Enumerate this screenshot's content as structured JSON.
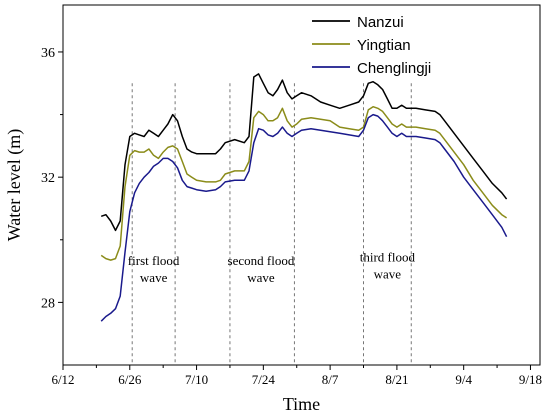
{
  "chart_data": {
    "type": "line",
    "xlabel": "Time",
    "ylabel": "Water level (m)",
    "xlim": [
      0,
      100
    ],
    "ylim": [
      26.0,
      37.5
    ],
    "x_ticks": [
      {
        "x": 0,
        "label": "6/12"
      },
      {
        "x": 14,
        "label": "6/26"
      },
      {
        "x": 28,
        "label": "7/10"
      },
      {
        "x": 42,
        "label": "7/24"
      },
      {
        "x": 56,
        "label": "8/7"
      },
      {
        "x": 70,
        "label": "8/21"
      },
      {
        "x": 84,
        "label": "9/4"
      },
      {
        "x": 98,
        "label": "9/18"
      }
    ],
    "y_ticks": [
      28,
      32,
      36
    ],
    "legend_position": "top-right",
    "series": [
      {
        "name": "Nanzui",
        "color": "#000000",
        "points": [
          [
            8,
            30.75
          ],
          [
            9,
            30.8
          ],
          [
            10,
            30.6
          ],
          [
            11,
            30.3
          ],
          [
            12,
            30.6
          ],
          [
            13,
            32.4
          ],
          [
            14,
            33.3
          ],
          [
            15,
            33.4
          ],
          [
            16,
            33.35
          ],
          [
            17,
            33.3
          ],
          [
            18,
            33.5
          ],
          [
            19,
            33.4
          ],
          [
            20,
            33.3
          ],
          [
            21,
            33.5
          ],
          [
            22,
            33.7
          ],
          [
            23,
            34.0
          ],
          [
            24,
            33.8
          ],
          [
            25,
            33.3
          ],
          [
            26,
            32.9
          ],
          [
            27,
            32.8
          ],
          [
            28,
            32.75
          ],
          [
            30,
            32.75
          ],
          [
            32,
            32.75
          ],
          [
            33,
            32.9
          ],
          [
            34,
            33.1
          ],
          [
            36,
            33.2
          ],
          [
            38,
            33.1
          ],
          [
            39,
            33.3
          ],
          [
            40,
            35.2
          ],
          [
            41,
            35.3
          ],
          [
            42,
            35.0
          ],
          [
            43,
            34.7
          ],
          [
            44,
            34.6
          ],
          [
            45,
            34.8
          ],
          [
            46,
            35.1
          ],
          [
            47,
            34.7
          ],
          [
            48,
            34.5
          ],
          [
            49,
            34.6
          ],
          [
            50,
            34.7
          ],
          [
            52,
            34.6
          ],
          [
            54,
            34.4
          ],
          [
            56,
            34.3
          ],
          [
            58,
            34.2
          ],
          [
            60,
            34.3
          ],
          [
            62,
            34.4
          ],
          [
            63,
            34.6
          ],
          [
            64,
            35.0
          ],
          [
            65,
            35.05
          ],
          [
            66,
            34.95
          ],
          [
            67,
            34.8
          ],
          [
            68,
            34.5
          ],
          [
            69,
            34.2
          ],
          [
            70,
            34.2
          ],
          [
            71,
            34.3
          ],
          [
            72,
            34.2
          ],
          [
            74,
            34.2
          ],
          [
            76,
            34.15
          ],
          [
            78,
            34.1
          ],
          [
            79,
            34.0
          ],
          [
            80,
            33.8
          ],
          [
            82,
            33.4
          ],
          [
            84,
            33.0
          ],
          [
            86,
            32.6
          ],
          [
            88,
            32.2
          ],
          [
            90,
            31.8
          ],
          [
            92,
            31.5
          ],
          [
            93,
            31.3
          ]
        ]
      },
      {
        "name": "Yingtian",
        "color": "#8b8c1a",
        "points": [
          [
            8,
            29.5
          ],
          [
            9,
            29.4
          ],
          [
            10,
            29.35
          ],
          [
            11,
            29.4
          ],
          [
            12,
            29.8
          ],
          [
            13,
            31.7
          ],
          [
            14,
            32.7
          ],
          [
            15,
            32.85
          ],
          [
            16,
            32.8
          ],
          [
            17,
            32.8
          ],
          [
            18,
            32.9
          ],
          [
            19,
            32.7
          ],
          [
            20,
            32.6
          ],
          [
            21,
            32.8
          ],
          [
            22,
            32.95
          ],
          [
            23,
            33.0
          ],
          [
            24,
            32.9
          ],
          [
            25,
            32.5
          ],
          [
            26,
            32.1
          ],
          [
            27,
            32.0
          ],
          [
            28,
            31.9
          ],
          [
            30,
            31.85
          ],
          [
            32,
            31.85
          ],
          [
            33,
            31.9
          ],
          [
            34,
            32.1
          ],
          [
            36,
            32.2
          ],
          [
            38,
            32.2
          ],
          [
            39,
            32.5
          ],
          [
            40,
            33.9
          ],
          [
            41,
            34.1
          ],
          [
            42,
            34.0
          ],
          [
            43,
            33.8
          ],
          [
            44,
            33.8
          ],
          [
            45,
            33.9
          ],
          [
            46,
            34.2
          ],
          [
            47,
            33.8
          ],
          [
            48,
            33.6
          ],
          [
            49,
            33.7
          ],
          [
            50,
            33.85
          ],
          [
            52,
            33.9
          ],
          [
            54,
            33.85
          ],
          [
            56,
            33.8
          ],
          [
            58,
            33.6
          ],
          [
            60,
            33.55
          ],
          [
            62,
            33.5
          ],
          [
            63,
            33.6
          ],
          [
            64,
            34.15
          ],
          [
            65,
            34.25
          ],
          [
            66,
            34.2
          ],
          [
            67,
            34.1
          ],
          [
            68,
            33.9
          ],
          [
            69,
            33.7
          ],
          [
            70,
            33.6
          ],
          [
            71,
            33.7
          ],
          [
            72,
            33.6
          ],
          [
            74,
            33.6
          ],
          [
            76,
            33.55
          ],
          [
            78,
            33.5
          ],
          [
            79,
            33.4
          ],
          [
            80,
            33.2
          ],
          [
            82,
            32.8
          ],
          [
            84,
            32.4
          ],
          [
            86,
            31.9
          ],
          [
            88,
            31.5
          ],
          [
            90,
            31.1
          ],
          [
            92,
            30.8
          ],
          [
            93,
            30.7
          ]
        ]
      },
      {
        "name": "Chenglingji",
        "color": "#1a1a8c",
        "points": [
          [
            8,
            27.4
          ],
          [
            9,
            27.55
          ],
          [
            10,
            27.65
          ],
          [
            11,
            27.8
          ],
          [
            12,
            28.2
          ],
          [
            13,
            29.6
          ],
          [
            14,
            30.9
          ],
          [
            15,
            31.5
          ],
          [
            16,
            31.8
          ],
          [
            17,
            32.0
          ],
          [
            18,
            32.15
          ],
          [
            19,
            32.35
          ],
          [
            20,
            32.45
          ],
          [
            21,
            32.6
          ],
          [
            22,
            32.6
          ],
          [
            23,
            32.5
          ],
          [
            24,
            32.3
          ],
          [
            25,
            31.9
          ],
          [
            26,
            31.7
          ],
          [
            27,
            31.65
          ],
          [
            28,
            31.6
          ],
          [
            30,
            31.55
          ],
          [
            32,
            31.6
          ],
          [
            33,
            31.7
          ],
          [
            34,
            31.85
          ],
          [
            36,
            31.9
          ],
          [
            38,
            31.9
          ],
          [
            39,
            32.2
          ],
          [
            40,
            33.1
          ],
          [
            41,
            33.55
          ],
          [
            42,
            33.5
          ],
          [
            43,
            33.35
          ],
          [
            44,
            33.3
          ],
          [
            45,
            33.4
          ],
          [
            46,
            33.6
          ],
          [
            47,
            33.4
          ],
          [
            48,
            33.3
          ],
          [
            49,
            33.4
          ],
          [
            50,
            33.5
          ],
          [
            52,
            33.55
          ],
          [
            54,
            33.5
          ],
          [
            56,
            33.45
          ],
          [
            58,
            33.4
          ],
          [
            60,
            33.35
          ],
          [
            62,
            33.3
          ],
          [
            63,
            33.5
          ],
          [
            64,
            33.9
          ],
          [
            65,
            34.0
          ],
          [
            66,
            33.95
          ],
          [
            67,
            33.8
          ],
          [
            68,
            33.6
          ],
          [
            69,
            33.4
          ],
          [
            70,
            33.3
          ],
          [
            71,
            33.4
          ],
          [
            72,
            33.3
          ],
          [
            74,
            33.3
          ],
          [
            76,
            33.25
          ],
          [
            78,
            33.2
          ],
          [
            79,
            33.1
          ],
          [
            80,
            32.9
          ],
          [
            82,
            32.5
          ],
          [
            84,
            32.0
          ],
          [
            86,
            31.6
          ],
          [
            88,
            31.2
          ],
          [
            90,
            30.8
          ],
          [
            92,
            30.4
          ],
          [
            93,
            30.1
          ]
        ]
      }
    ],
    "vlines": [
      14.5,
      23.5,
      35,
      48.5,
      63,
      73
    ],
    "annotations": [
      {
        "text_lines": [
          "first flood",
          "wave"
        ],
        "x": 19,
        "y": 29.2
      },
      {
        "text_lines": [
          "second flood",
          "wave"
        ],
        "x": 41.5,
        "y": 29.2
      },
      {
        "text_lines": [
          "third flood",
          "wave"
        ],
        "x": 68,
        "y": 29.3
      }
    ]
  }
}
